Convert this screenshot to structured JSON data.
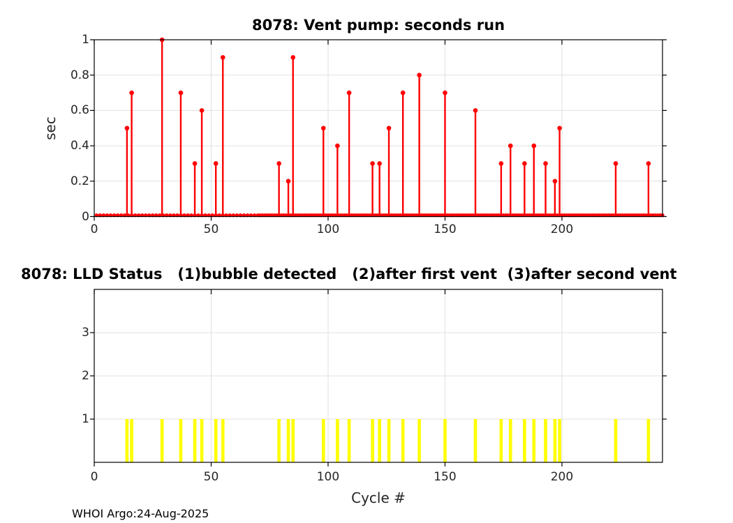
{
  "watermark": "WHOI Argo:24-Aug-2025",
  "colors": {
    "background": "#ffffff",
    "stem": "#ff0000",
    "bar": "#ffff00",
    "grid": "#e0e0e0",
    "axis": "#000000",
    "tick_label": "#262626",
    "title": "#000000"
  },
  "chart_data": [
    {
      "type": "stem",
      "title": "8078: Vent pump: seconds run",
      "xlabel": "",
      "ylabel": "sec",
      "xlim": [
        0,
        243
      ],
      "ylim": [
        0,
        1
      ],
      "xticks": [
        0,
        50,
        100,
        150,
        200
      ],
      "yticks": [
        0,
        0.2,
        0.4,
        0.6,
        0.8,
        1
      ],
      "grid": true,
      "series": [
        {
          "name": "vent-pump-seconds-run",
          "color": "#ff0000",
          "points": [
            [
              14,
              0.5
            ],
            [
              16,
              0.7
            ],
            [
              29,
              1
            ],
            [
              37,
              0.7
            ],
            [
              43,
              0.3
            ],
            [
              46,
              0.6
            ],
            [
              52,
              0.3
            ],
            [
              55,
              0.9
            ],
            [
              79,
              0.3
            ],
            [
              83,
              0.2
            ],
            [
              85,
              0.9
            ],
            [
              98,
              0.5
            ],
            [
              104,
              0.4
            ],
            [
              109,
              0.7
            ],
            [
              119,
              0.3
            ],
            [
              122,
              0.3
            ],
            [
              126,
              0.5
            ],
            [
              132,
              0.7
            ],
            [
              139,
              0.8
            ],
            [
              150,
              0.7
            ],
            [
              163,
              0.6
            ],
            [
              174,
              0.3
            ],
            [
              178,
              0.4
            ],
            [
              184,
              0.3
            ],
            [
              188,
              0.4
            ],
            [
              193,
              0.3
            ],
            [
              197,
              0.2
            ],
            [
              199,
              0.5
            ],
            [
              223,
              0.3
            ],
            [
              237,
              0.3
            ]
          ]
        }
      ],
      "zero_marker_segments": [
        {
          "from": 1,
          "to": 69,
          "step": 1.5
        },
        {
          "from": 70,
          "to": 243,
          "step": 1
        }
      ]
    },
    {
      "type": "bar",
      "title": "8078: LLD Status   (1)bubble detected   (2)after first vent  (3)after second vent",
      "xlabel": "Cycle #",
      "ylabel": "",
      "xlim": [
        0,
        243
      ],
      "ylim": [
        0,
        4
      ],
      "xticks": [
        0,
        50,
        100,
        150,
        200
      ],
      "yticks": [
        1,
        2,
        3
      ],
      "grid": true,
      "bar_color": "#ffff00",
      "x": [
        14,
        16,
        29,
        37,
        43,
        46,
        52,
        55,
        79,
        83,
        85,
        98,
        104,
        109,
        119,
        122,
        126,
        132,
        139,
        150,
        163,
        174,
        178,
        184,
        188,
        193,
        197,
        199,
        223,
        237
      ],
      "values": [
        1,
        1,
        1,
        1,
        1,
        1,
        1,
        1,
        1,
        1,
        1,
        1,
        1,
        1,
        1,
        1,
        1,
        1,
        1,
        1,
        1,
        1,
        1,
        1,
        1,
        1,
        1,
        1,
        1,
        1
      ]
    }
  ]
}
